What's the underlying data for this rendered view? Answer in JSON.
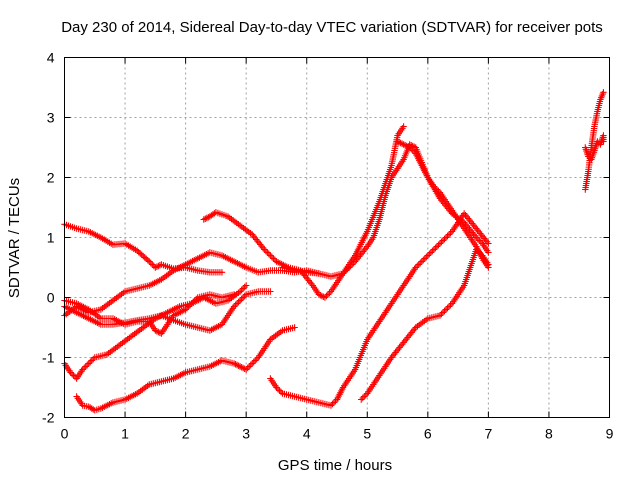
{
  "chart_data": {
    "type": "scatter",
    "title": "Day 230 of 2014, Sidereal Day-to-day VTEC variation (SDTVAR) for receiver pots",
    "xlabel": "GPS time / hours",
    "ylabel": "SDTVAR / TECUs",
    "xlim": [
      0,
      9
    ],
    "ylim": [
      -2,
      4
    ],
    "xticks": [
      "0",
      "1",
      "2",
      "3",
      "4",
      "5",
      "6",
      "7",
      "8",
      "9"
    ],
    "yticks": [
      "-2",
      "-1",
      "0",
      "1",
      "2",
      "3",
      "4"
    ],
    "grid": true,
    "marker": "plus",
    "color": "#ff0000",
    "series": [
      {
        "x": [
          0.0,
          0.2,
          0.4,
          0.6,
          0.8,
          1.0,
          1.2,
          1.4,
          1.5,
          1.6,
          1.8,
          2.0,
          2.2,
          2.4,
          2.6
        ],
        "y": [
          1.22,
          1.15,
          1.1,
          1.0,
          0.88,
          0.9,
          0.78,
          0.6,
          0.5,
          0.55,
          0.48,
          0.5,
          0.45,
          0.42,
          0.42
        ]
      },
      {
        "x": [
          0.0,
          0.2,
          0.4,
          0.6,
          0.8,
          1.0,
          1.2,
          1.4,
          1.6,
          1.8,
          2.0,
          2.2,
          2.4,
          2.6,
          2.8,
          3.0,
          3.2,
          3.4,
          3.6,
          3.8,
          4.0,
          4.2
        ],
        "y": [
          -0.3,
          -0.15,
          -0.25,
          -0.2,
          -0.05,
          0.1,
          0.15,
          0.2,
          0.3,
          0.45,
          0.55,
          0.65,
          0.75,
          0.7,
          0.6,
          0.5,
          0.42,
          0.45,
          0.45,
          0.42,
          0.45,
          0.4
        ]
      },
      {
        "x": [
          0.0,
          0.2,
          0.4,
          0.6,
          0.8,
          1.0,
          1.2,
          1.4,
          1.5,
          1.6,
          1.8,
          2.0,
          2.2,
          2.4,
          2.6,
          2.8
        ],
        "y": [
          -0.05,
          -0.1,
          -0.2,
          -0.35,
          -0.35,
          -0.45,
          -0.4,
          -0.4,
          -0.55,
          -0.6,
          -0.3,
          -0.2,
          0.0,
          0.05,
          0.0,
          0.05
        ]
      },
      {
        "x": [
          0.0,
          0.2,
          0.4,
          0.6,
          0.8,
          1.0,
          1.2,
          1.4,
          1.6,
          1.8,
          2.0,
          2.2,
          2.4,
          2.6,
          2.8,
          3.0,
          3.2,
          3.4
        ],
        "y": [
          -0.15,
          -0.25,
          -0.35,
          -0.45,
          -0.45,
          -0.42,
          -0.38,
          -0.35,
          -0.3,
          -0.38,
          -0.45,
          -0.5,
          -0.55,
          -0.45,
          -0.15,
          0.05,
          0.1,
          0.1
        ]
      },
      {
        "x": [
          0.0,
          0.1,
          0.2,
          0.3,
          0.5,
          0.7,
          0.9,
          1.1,
          1.3,
          1.5,
          1.7,
          1.9,
          2.1,
          2.3,
          2.5,
          2.7,
          2.9,
          3.0
        ],
        "y": [
          -1.1,
          -1.25,
          -1.35,
          -1.2,
          -1.0,
          -0.95,
          -0.8,
          -0.65,
          -0.5,
          -0.35,
          -0.25,
          -0.15,
          -0.1,
          0.0,
          -0.1,
          -0.05,
          0.1,
          0.2
        ]
      },
      {
        "x": [
          0.2,
          0.3,
          0.4,
          0.5,
          0.6,
          0.8,
          1.0,
          1.2,
          1.4,
          1.6,
          1.8,
          2.0,
          2.2,
          2.4,
          2.6,
          2.8,
          2.9,
          3.0,
          3.2,
          3.4,
          3.6,
          3.8
        ],
        "y": [
          -1.65,
          -1.8,
          -1.82,
          -1.88,
          -1.85,
          -1.75,
          -1.7,
          -1.6,
          -1.45,
          -1.4,
          -1.35,
          -1.25,
          -1.2,
          -1.15,
          -1.05,
          -1.1,
          -1.15,
          -1.2,
          -1.0,
          -0.7,
          -0.55,
          -0.5
        ]
      },
      {
        "x": [
          2.3,
          2.4,
          2.5,
          2.7,
          2.9,
          3.1,
          3.3,
          3.5,
          3.7,
          3.9,
          4.1,
          4.2,
          4.3,
          4.4,
          4.6,
          4.8,
          5.0,
          5.2,
          5.4,
          5.5,
          5.6
        ],
        "y": [
          1.3,
          1.35,
          1.42,
          1.35,
          1.2,
          1.05,
          0.8,
          0.6,
          0.5,
          0.45,
          0.2,
          0.05,
          0.0,
          0.1,
          0.4,
          0.7,
          1.1,
          1.6,
          2.2,
          2.7,
          2.85
        ]
      },
      {
        "x": [
          3.6,
          3.8,
          4.0,
          4.2,
          4.4,
          4.6,
          4.8,
          5.0,
          5.1,
          5.2,
          5.3,
          5.4,
          5.5,
          5.6,
          5.7,
          5.8,
          5.9,
          6.0,
          6.2,
          6.4,
          6.6,
          6.8,
          6.9,
          7.0
        ],
        "y": [
          0.5,
          0.45,
          0.42,
          0.4,
          0.35,
          0.4,
          0.6,
          0.85,
          1.0,
          1.3,
          1.7,
          2.0,
          2.15,
          2.3,
          2.55,
          2.5,
          2.25,
          2.0,
          1.65,
          1.4,
          1.25,
          1.0,
          0.9,
          0.75
        ]
      },
      {
        "x": [
          3.4,
          3.5,
          3.6,
          3.8,
          4.0,
          4.2,
          4.4,
          4.5,
          4.6,
          4.8,
          5.0,
          5.2,
          5.4,
          5.6,
          5.8,
          6.0,
          6.2,
          6.4,
          6.6,
          6.8,
          7.0
        ],
        "y": [
          -1.35,
          -1.5,
          -1.6,
          -1.65,
          -1.7,
          -1.75,
          -1.8,
          -1.7,
          -1.5,
          -1.2,
          -0.7,
          -0.4,
          -0.1,
          0.2,
          0.5,
          0.7,
          0.9,
          1.1,
          1.4,
          1.15,
          0.9
        ]
      },
      {
        "x": [
          4.9,
          5.0,
          5.2,
          5.4,
          5.6,
          5.8,
          6.0,
          6.2,
          6.4,
          6.6,
          6.8,
          6.9,
          7.0
        ],
        "y": [
          -1.7,
          -1.6,
          -1.3,
          -1.0,
          -0.75,
          -0.5,
          -0.35,
          -0.3,
          -0.1,
          0.2,
          0.8,
          0.7,
          0.55
        ]
      },
      {
        "x": [
          5.5,
          5.6,
          5.7,
          5.8,
          5.9,
          6.0,
          6.1,
          6.2,
          6.3,
          6.4,
          6.5,
          6.6,
          6.7,
          6.8,
          6.9,
          7.0
        ],
        "y": [
          2.6,
          2.55,
          2.5,
          2.4,
          2.2,
          2.0,
          1.85,
          1.75,
          1.6,
          1.45,
          1.3,
          1.15,
          1.0,
          0.85,
          0.65,
          0.5
        ]
      },
      {
        "x": [
          8.6,
          8.65,
          8.7,
          8.75,
          8.8,
          8.85,
          8.9
        ],
        "y": [
          1.8,
          2.1,
          2.5,
          2.85,
          3.1,
          3.3,
          3.42
        ]
      },
      {
        "x": [
          8.6,
          8.65,
          8.7,
          8.75,
          8.8,
          8.85,
          8.9,
          8.9
        ],
        "y": [
          2.5,
          2.35,
          2.3,
          2.45,
          2.6,
          2.55,
          2.7,
          2.6
        ]
      }
    ]
  }
}
